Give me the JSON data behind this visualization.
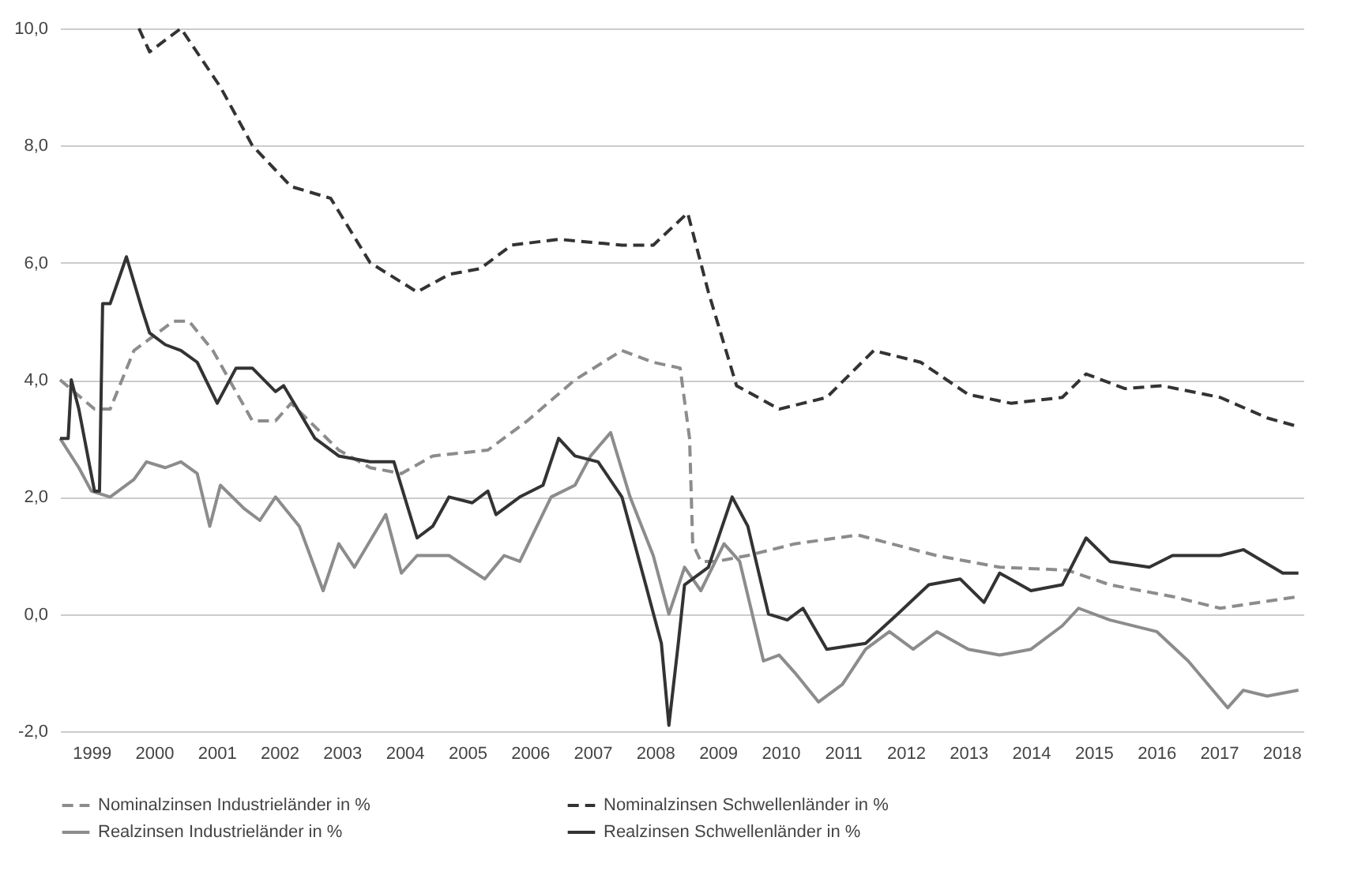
{
  "chart_data": {
    "type": "line",
    "xlim": [
      1999,
      2018.85
    ],
    "xticks": [
      {
        "value": 1999.5,
        "label": "1999"
      },
      {
        "value": 2000.5,
        "label": "2000"
      },
      {
        "value": 2001.5,
        "label": "2001"
      },
      {
        "value": 2002.5,
        "label": "2002"
      },
      {
        "value": 2003.5,
        "label": "2003"
      },
      {
        "value": 2004.5,
        "label": "2004"
      },
      {
        "value": 2005.5,
        "label": "2005"
      },
      {
        "value": 2006.5,
        "label": "2006"
      },
      {
        "value": 2007.5,
        "label": "2007"
      },
      {
        "value": 2008.5,
        "label": "2008"
      },
      {
        "value": 2009.5,
        "label": "2009"
      },
      {
        "value": 2010.5,
        "label": "2010"
      },
      {
        "value": 2011.5,
        "label": "2011"
      },
      {
        "value": 2012.5,
        "label": "2012"
      },
      {
        "value": 2013.5,
        "label": "2013"
      },
      {
        "value": 2014.5,
        "label": "2014"
      },
      {
        "value": 2015.5,
        "label": "2015"
      },
      {
        "value": 2016.5,
        "label": "2016"
      },
      {
        "value": 2017.5,
        "label": "2017"
      },
      {
        "value": 2018.5,
        "label": "2018"
      }
    ],
    "ylim": [
      -2,
      10
    ],
    "yticks": [
      {
        "value": -2,
        "label": "-2,0"
      },
      {
        "value": 0,
        "label": "0,0"
      },
      {
        "value": 2,
        "label": "2,0"
      },
      {
        "value": 4,
        "label": "4,0"
      },
      {
        "value": 6,
        "label": "6,0"
      },
      {
        "value": 8,
        "label": "8,0"
      },
      {
        "value": 10,
        "label": "10,0"
      }
    ],
    "grid": "y",
    "legend": "bottom",
    "marker": "none",
    "series": [
      {
        "name": "Nominalzinsen Industrieländer in %",
        "color": "#8c8c8c",
        "line_style": "dashed",
        "x": [
          1999,
          1999.55,
          1999.8,
          2000.18,
          2000.81,
          2001.06,
          2001.44,
          2002.07,
          2002.44,
          2002.69,
          2003.45,
          2003.95,
          2004.45,
          2004.95,
          2005.83,
          2006.46,
          2007.22,
          2007.97,
          2008.47,
          2008.9,
          2009.05,
          2009.1,
          2009.23,
          2009.48,
          2009.98,
          2010.73,
          2011.74,
          2012.99,
          2014.0,
          2015.08,
          2015.76,
          2016.76,
          2017.52,
          2018.77
        ],
        "values": [
          4.0,
          3.5,
          3.5,
          4.5,
          5.0,
          5.0,
          4.5,
          3.3,
          3.3,
          3.6,
          2.8,
          2.5,
          2.4,
          2.7,
          2.8,
          3.3,
          4.0,
          4.5,
          4.3,
          4.2,
          3.0,
          1.2,
          0.9,
          0.9,
          1.0,
          1.2,
          1.35,
          1.0,
          0.8,
          0.75,
          0.5,
          0.3,
          0.1,
          0.3
        ]
      },
      {
        "name": "Nominalzinsen Schwellenländer in %",
        "color": "#333333",
        "line_style": "dashed",
        "x": [
          2000.26,
          2000.43,
          2000.93,
          2001.56,
          2002.07,
          2002.69,
          2003.32,
          2003.95,
          2004.7,
          2005.21,
          2005.71,
          2006.21,
          2006.96,
          2007.97,
          2008.47,
          2009.02,
          2009.35,
          2009.8,
          2010.48,
          2011.24,
          2011.99,
          2012.74,
          2013.5,
          2014.18,
          2015.0,
          2015.38,
          2016.0,
          2016.59,
          2017.52,
          2018.27,
          2018.77
        ],
        "values": [
          10.0,
          9.6,
          10.0,
          9.0,
          8.0,
          7.3,
          7.1,
          6.0,
          5.5,
          5.8,
          5.9,
          6.3,
          6.4,
          6.3,
          6.3,
          6.85,
          5.5,
          3.9,
          3.5,
          3.7,
          4.5,
          4.3,
          3.75,
          3.6,
          3.7,
          4.1,
          3.85,
          3.9,
          3.7,
          3.35,
          3.2
        ]
      },
      {
        "name": "Realzinsen Industrieländer in %",
        "color": "#8c8c8c",
        "line_style": "solid",
        "x": [
          1999,
          1999.3,
          1999.5,
          1999.8,
          2000.18,
          2000.38,
          2000.68,
          2000.93,
          2001.19,
          2001.39,
          2001.56,
          2001.94,
          2002.19,
          2002.44,
          2002.82,
          2003.2,
          2003.45,
          2003.7,
          2004.2,
          2004.45,
          2004.7,
          2005.21,
          2005.78,
          2006.09,
          2006.34,
          2006.84,
          2007.22,
          2007.47,
          2007.79,
          2008.1,
          2008.47,
          2008.72,
          2008.97,
          2009.23,
          2009.6,
          2009.85,
          2010.23,
          2010.48,
          2010.73,
          2011.11,
          2011.49,
          2011.86,
          2012.24,
          2012.62,
          2013.0,
          2013.5,
          2014.0,
          2014.5,
          2015.0,
          2015.26,
          2015.76,
          2016.51,
          2017.01,
          2017.64,
          2017.89,
          2018.27,
          2018.77
        ],
        "values": [
          3.0,
          2.5,
          2.1,
          2.0,
          2.3,
          2.6,
          2.5,
          2.6,
          2.4,
          1.5,
          2.2,
          1.8,
          1.6,
          2.0,
          1.5,
          0.4,
          1.2,
          0.8,
          1.7,
          0.7,
          1.0,
          1.0,
          0.6,
          1.0,
          0.9,
          2.0,
          2.2,
          2.7,
          3.1,
          2.0,
          1.0,
          0.0,
          0.8,
          0.4,
          1.2,
          0.9,
          -0.8,
          -0.7,
          -1.0,
          -1.5,
          -1.2,
          -0.6,
          -0.3,
          -0.6,
          -0.3,
          -0.6,
          -0.7,
          -0.6,
          -0.2,
          0.1,
          -0.1,
          -0.3,
          -0.8,
          -1.6,
          -1.3,
          -1.4,
          -1.3
        ]
      },
      {
        "name": "Realzinsen Schwellenländer in %",
        "color": "#333333",
        "line_style": "solid",
        "x": [
          1999,
          1999.13,
          1999.18,
          1999.3,
          1999.55,
          1999.63,
          1999.68,
          1999.8,
          2000.06,
          2000.31,
          2000.43,
          2000.68,
          2000.93,
          2001.19,
          2001.51,
          2001.81,
          2002.07,
          2002.44,
          2002.57,
          2003.07,
          2003.45,
          2003.95,
          2004.33,
          2004.7,
          2004.95,
          2005.21,
          2005.58,
          2005.83,
          2005.96,
          2006.34,
          2006.71,
          2006.96,
          2007.22,
          2007.59,
          2007.97,
          2008.35,
          2008.6,
          2008.72,
          2008.87,
          2008.97,
          2009.35,
          2009.73,
          2009.98,
          2010.31,
          2010.61,
          2010.86,
          2011.24,
          2011.86,
          2012.37,
          2012.87,
          2013.37,
          2013.75,
          2014.0,
          2014.5,
          2015.0,
          2015.38,
          2015.76,
          2016.39,
          2016.76,
          2017.52,
          2017.89,
          2018.52,
          2018.77
        ],
        "values": [
          3.0,
          3.0,
          4.0,
          3.5,
          2.1,
          2.1,
          5.3,
          5.3,
          6.1,
          5.2,
          4.8,
          4.6,
          4.5,
          4.3,
          3.6,
          4.2,
          4.2,
          3.8,
          3.9,
          3.0,
          2.7,
          2.6,
          2.6,
          1.3,
          1.5,
          2.0,
          1.9,
          2.1,
          1.7,
          2.0,
          2.2,
          3.0,
          2.7,
          2.6,
          2.0,
          0.5,
          -0.5,
          -1.9,
          -0.5,
          0.5,
          0.8,
          2.0,
          1.5,
          0.0,
          -0.1,
          0.1,
          -0.6,
          -0.5,
          0.0,
          0.5,
          0.6,
          0.2,
          0.7,
          0.4,
          0.5,
          1.3,
          0.9,
          0.8,
          1.0,
          1.0,
          1.1,
          0.7,
          0.7
        ]
      }
    ]
  }
}
